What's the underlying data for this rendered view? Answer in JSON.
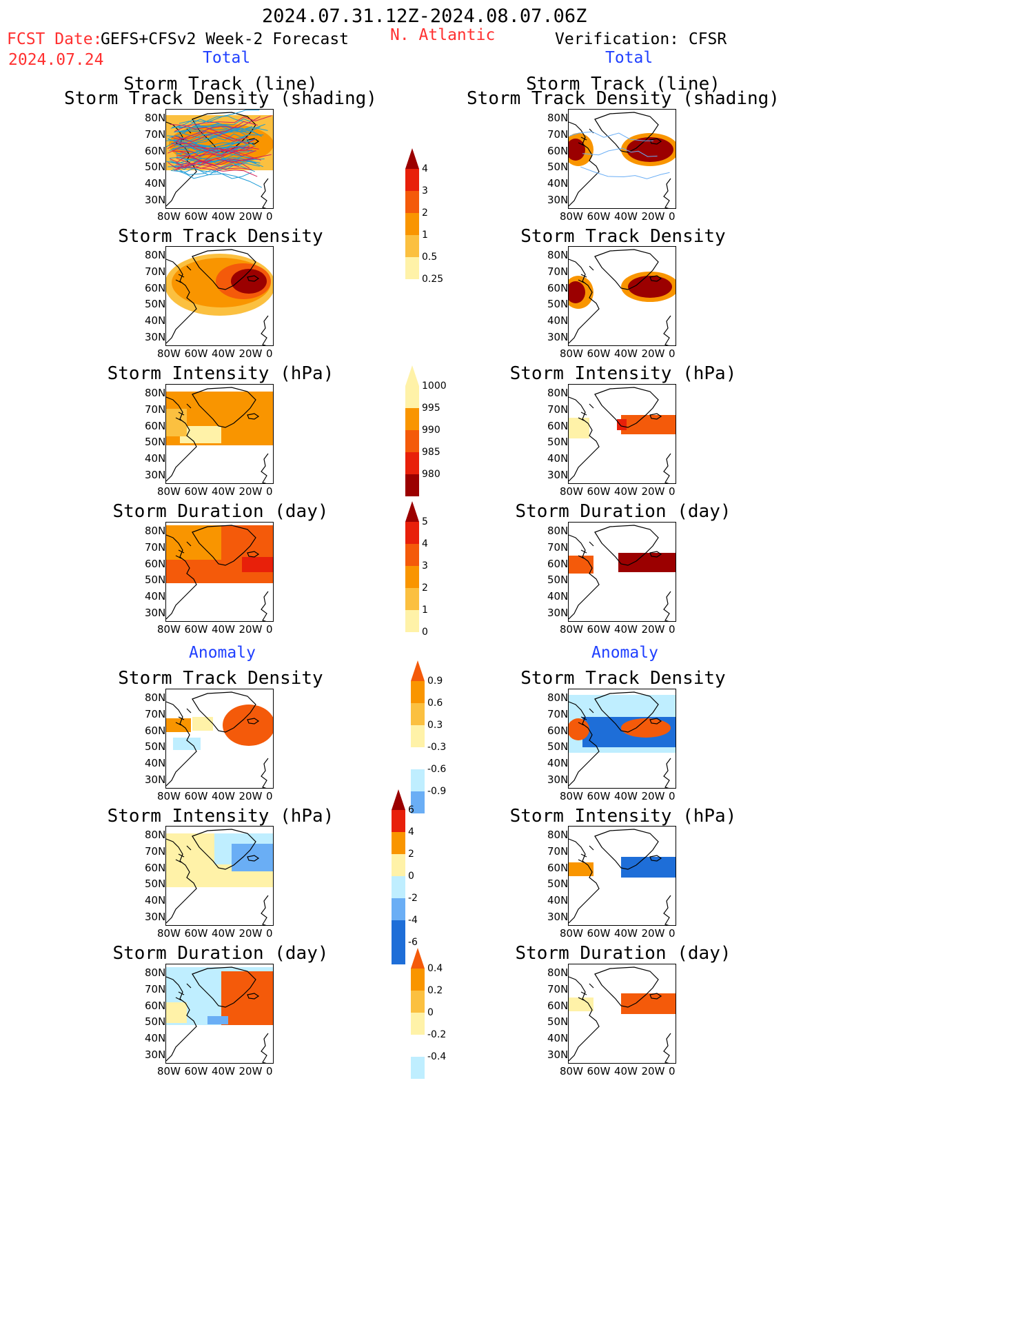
{
  "header": {
    "period": "2024.07.31.12Z-2024.08.07.06Z",
    "fcst_label": "FCST Date:",
    "fcst_date": "2024.07.24",
    "model": "GEFS+CFSv2 Week-2 Forecast",
    "region": "N. Atlantic",
    "verification": "Verification: CFSR",
    "total_left": "Total",
    "total_right": "Total",
    "anomaly_left": "Anomaly",
    "anomaly_right": "Anomaly"
  },
  "panel_titles": {
    "track_line": "Storm Track (line)",
    "track_shading": "Storm Track Density (shading)",
    "density": "Storm Track Density",
    "intensity": "Storm Intensity (hPa)",
    "duration": "Storm Duration (day)"
  },
  "axes": {
    "lat_labels": [
      "80N",
      "70N",
      "60N",
      "50N",
      "40N",
      "30N"
    ],
    "lon_labels": [
      "80W",
      "60W",
      "40W",
      "20W",
      "0"
    ]
  },
  "colorbars": {
    "density": [
      "4",
      "3",
      "2",
      "1",
      "0.5",
      "0.25"
    ],
    "intensity": [
      "1000",
      "995",
      "990",
      "985",
      "980"
    ],
    "duration": [
      "5",
      "4",
      "3",
      "2",
      "1",
      "0"
    ],
    "density_anom": [
      "0.9",
      "0.6",
      "0.3",
      "-0.3",
      "-0.6",
      "-0.9"
    ],
    "intensity_anom": [
      "6",
      "4",
      "2",
      "0",
      "-2",
      "-4",
      "-6"
    ],
    "duration_anom": [
      "0.4",
      "0.2",
      "0",
      "-0.2",
      "-0.4"
    ]
  },
  "colors": {
    "dark_red": "#9b0000",
    "red": "#e8200a",
    "orange_red": "#f45a0a",
    "orange": "#f99500",
    "light_orange": "#fbc040",
    "pale_yellow": "#fff2a8",
    "light_blue": "#bfeeff",
    "mid_blue": "#6aaef5",
    "blue": "#1e6ed8"
  }
}
